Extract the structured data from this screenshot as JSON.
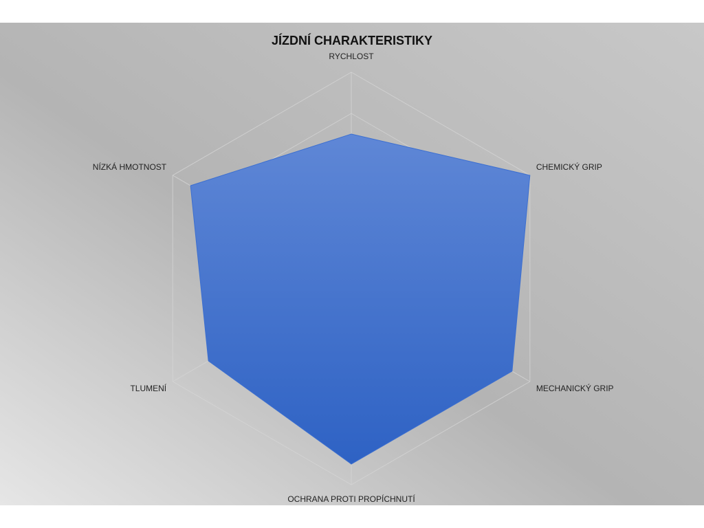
{
  "chart_data": {
    "type": "radar",
    "title": "JÍZDNÍ CHARAKTERISTIKY",
    "categories": [
      "RYCHLOST",
      "CHEMICKÝ GRIP",
      "MECHANICKÝ GRIP",
      "OCHRANA PROTI PROPÍCHNUTÍ",
      "TLUMENÍ",
      "NÍZKÁ HMOTNOST"
    ],
    "values": [
      7,
      10,
      9,
      9,
      8,
      9
    ],
    "color": "#3c6fd0",
    "ylim": [
      0,
      10
    ],
    "yticks": [
      2,
      4,
      6,
      8,
      10
    ],
    "grid": true
  }
}
